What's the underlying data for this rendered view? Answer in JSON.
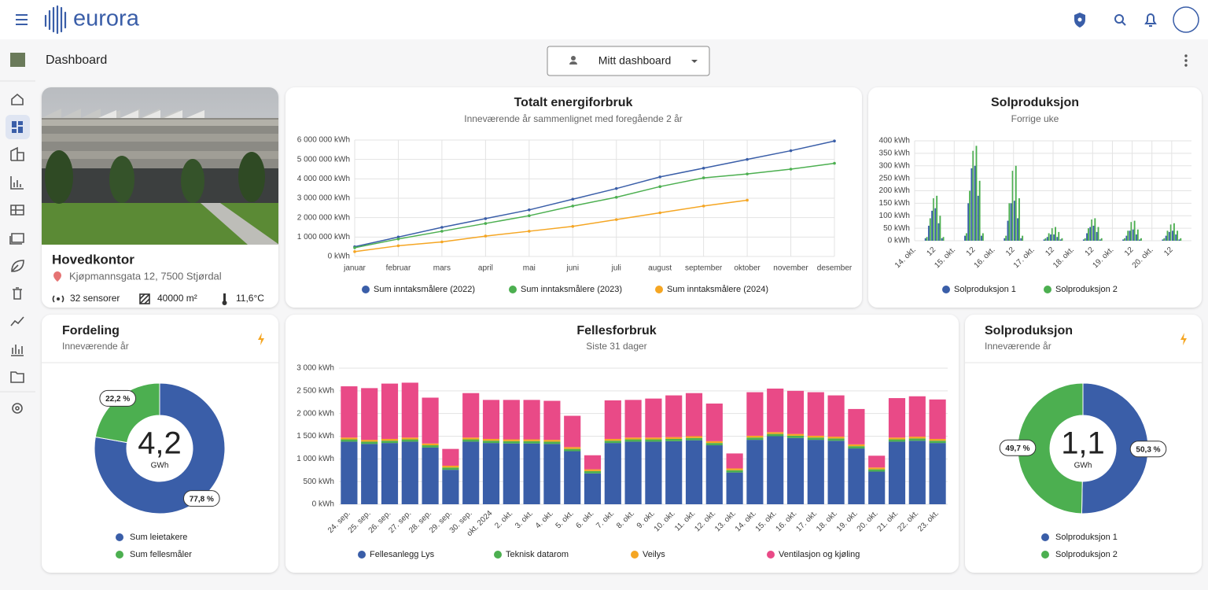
{
  "header": {
    "logo": "eurora"
  },
  "page": {
    "title": "Dashboard",
    "dashboard_select": "Mitt dashboard"
  },
  "building": {
    "name": "Hovedkontor",
    "address": "Kjøpmannsgata 12, 7500 Stjørdal",
    "sensors": "32 sensorer",
    "area": "40000 m²",
    "temperature": "11,6°C"
  },
  "chart_data": [
    {
      "type": "line",
      "title": "Totalt energiforbruk",
      "subtitle": "Inneværende år sammenlignet med foregående 2 år",
      "categories": [
        "januar",
        "februar",
        "mars",
        "april",
        "mai",
        "juni",
        "juli",
        "august",
        "september",
        "oktober",
        "november",
        "desember"
      ],
      "series": [
        {
          "name": "Sum inntaksmålere (2022)",
          "color": "#3a5ea8",
          "values": [
            500000,
            1000000,
            1500000,
            1950000,
            2400000,
            2950000,
            3500000,
            4100000,
            4550000,
            5000000,
            5450000,
            5950000
          ]
        },
        {
          "name": "Sum inntaksmålere (2023)",
          "color": "#4caf50",
          "values": [
            450000,
            900000,
            1300000,
            1700000,
            2100000,
            2600000,
            3050000,
            3600000,
            4050000,
            4250000,
            4500000,
            4800000
          ]
        },
        {
          "name": "Sum inntaksmålere (2024)",
          "color": "#f5a623",
          "values": [
            250000,
            550000,
            750000,
            1050000,
            1300000,
            1550000,
            1900000,
            2250000,
            2600000,
            2900000,
            null,
            null
          ]
        }
      ],
      "ylim": [
        0,
        6000000
      ],
      "yticks": [
        {
          "value": 0,
          "label": "0 kWh"
        },
        {
          "value": 1000000,
          "label": "1 000 000 kWh"
        },
        {
          "value": 2000000,
          "label": "2 000 000 kWh"
        },
        {
          "value": 3000000,
          "label": "3 000 000 kWh"
        },
        {
          "value": 4000000,
          "label": "4 000 000 kWh"
        },
        {
          "value": 5000000,
          "label": "5 000 000 kWh"
        },
        {
          "value": 6000000,
          "label": "6 000 000 kWh"
        }
      ],
      "grid": true
    },
    {
      "type": "bar",
      "title": "Solproduksjon",
      "subtitle": "Forrige uke",
      "categories": [
        "14. okt.",
        null,
        null,
        null,
        null,
        null,
        "12",
        null,
        null,
        null,
        null,
        null,
        "15. okt.",
        null,
        null,
        null,
        null,
        null,
        "12",
        null,
        null,
        null,
        null,
        null,
        "16. okt.",
        null,
        null,
        null,
        null,
        null,
        "12",
        null,
        null,
        null,
        null,
        null,
        "17. okt.",
        null,
        null,
        null,
        null,
        null,
        "12",
        null,
        null,
        null,
        null,
        null,
        "18. okt.",
        null,
        null,
        null,
        null,
        null,
        "12",
        null,
        null,
        null,
        null,
        null,
        "19. okt.",
        null,
        null,
        null,
        null,
        null,
        "12",
        null,
        null,
        null,
        null,
        null,
        "20. okt.",
        null,
        null,
        null,
        null,
        null,
        "12",
        null,
        null,
        null,
        null,
        null
      ],
      "series": [
        {
          "name": "Solproduksjon 1",
          "color": "#3a5ea8",
          "values": [
            0,
            0,
            0,
            10,
            60,
            120,
            130,
            70,
            10,
            0,
            0,
            0,
            0,
            0,
            0,
            20,
            150,
            290,
            300,
            180,
            20,
            0,
            0,
            0,
            0,
            0,
            0,
            10,
            80,
            150,
            160,
            90,
            10,
            0,
            0,
            0,
            0,
            0,
            0,
            5,
            15,
            25,
            25,
            15,
            5,
            0,
            0,
            0,
            0,
            0,
            0,
            5,
            30,
            55,
            60,
            35,
            5,
            0,
            0,
            0,
            0,
            0,
            0,
            5,
            20,
            40,
            45,
            25,
            5,
            0,
            0,
            0,
            0,
            0,
            0,
            5,
            20,
            35,
            40,
            25,
            5,
            0,
            0,
            0
          ]
        },
        {
          "name": "Solproduksjon 2",
          "color": "#4caf50",
          "values": [
            0,
            0,
            0,
            15,
            90,
            170,
            180,
            100,
            15,
            0,
            0,
            0,
            0,
            0,
            0,
            30,
            200,
            360,
            380,
            240,
            30,
            0,
            0,
            0,
            0,
            0,
            0,
            20,
            150,
            280,
            300,
            170,
            20,
            0,
            0,
            0,
            0,
            0,
            0,
            10,
            30,
            50,
            55,
            35,
            10,
            0,
            0,
            0,
            0,
            0,
            0,
            10,
            50,
            85,
            90,
            55,
            10,
            0,
            0,
            0,
            0,
            0,
            0,
            10,
            40,
            75,
            80,
            45,
            10,
            0,
            0,
            0,
            0,
            0,
            0,
            10,
            40,
            65,
            70,
            40,
            10,
            0,
            0,
            0
          ]
        }
      ],
      "ylim": [
        0,
        400
      ],
      "yticks": [
        {
          "value": 0,
          "label": "0 kWh"
        },
        {
          "value": 50,
          "label": "50 kWh"
        },
        {
          "value": 100,
          "label": "100 kWh"
        },
        {
          "value": 150,
          "label": "150 kWh"
        },
        {
          "value": 200,
          "label": "200 kWh"
        },
        {
          "value": 250,
          "label": "250 kWh"
        },
        {
          "value": 300,
          "label": "300 kWh"
        },
        {
          "value": 350,
          "label": "350 kWh"
        },
        {
          "value": 400,
          "label": "400 kWh"
        }
      ],
      "grid": true
    },
    {
      "type": "bar",
      "stacked": true,
      "title": "Fellesforbruk",
      "subtitle": "Siste 31 dager",
      "categories": [
        "24. sep.",
        "25. sep.",
        "26. sep.",
        "27. sep.",
        "28. sep.",
        "29. sep.",
        "30. sep.",
        "okt. 2024",
        "2. okt.",
        "3. okt.",
        "4. okt.",
        "5. okt.",
        "6. okt.",
        "7. okt.",
        "8. okt.",
        "9. okt.",
        "10. okt.",
        "11. okt.",
        "12. okt.",
        "13. okt.",
        "14. okt.",
        "15. okt.",
        "16. okt.",
        "17. okt.",
        "18. okt.",
        "19. okt.",
        "20. okt.",
        "21. okt.",
        "22. okt.",
        "23. okt."
      ],
      "series": [
        {
          "name": "Fellesanlegg Lys",
          "color": "#3a5ea8",
          "values": [
            1380,
            1330,
            1350,
            1380,
            1250,
            760,
            1380,
            1350,
            1340,
            1340,
            1330,
            1170,
            680,
            1350,
            1380,
            1380,
            1390,
            1410,
            1300,
            700,
            1420,
            1500,
            1460,
            1420,
            1400,
            1230,
            720,
            1380,
            1400,
            1350
          ]
        },
        {
          "name": "Teknisk datarom",
          "color": "#4caf50",
          "values": [
            50,
            50,
            50,
            50,
            50,
            50,
            50,
            50,
            50,
            50,
            50,
            50,
            50,
            50,
            50,
            50,
            50,
            50,
            50,
            50,
            50,
            50,
            50,
            50,
            50,
            50,
            50,
            50,
            50,
            50
          ]
        },
        {
          "name": "Veilys",
          "color": "#f5a623",
          "values": [
            40,
            40,
            40,
            40,
            40,
            40,
            40,
            40,
            40,
            40,
            40,
            40,
            40,
            40,
            40,
            40,
            40,
            40,
            40,
            40,
            40,
            40,
            40,
            40,
            40,
            40,
            40,
            40,
            40,
            40
          ]
        },
        {
          "name": "Ventilasjon og kjøling",
          "color": "#e94a87",
          "values": [
            1130,
            1140,
            1220,
            1210,
            1010,
            370,
            980,
            860,
            870,
            870,
            860,
            690,
            310,
            850,
            830,
            860,
            920,
            950,
            830,
            330,
            960,
            960,
            950,
            960,
            910,
            780,
            260,
            870,
            890,
            870
          ]
        }
      ],
      "ylim": [
        0,
        3000
      ],
      "yticks": [
        {
          "value": 0,
          "label": "0 kWh"
        },
        {
          "value": 500,
          "label": "500 kWh"
        },
        {
          "value": 1000,
          "label": "1 000 kWh"
        },
        {
          "value": 1500,
          "label": "1 500 kWh"
        },
        {
          "value": 2000,
          "label": "2 000 kWh"
        },
        {
          "value": 2500,
          "label": "2 500 kWh"
        },
        {
          "value": 3000,
          "label": "3 000 kWh"
        }
      ],
      "grid": true
    },
    {
      "type": "pie",
      "donut": true,
      "title": "Fordeling",
      "subtitle": "Inneværende år",
      "categories": [
        "Sum leietakere",
        "Sum fellesmåler"
      ],
      "values": [
        77.8,
        22.2
      ],
      "value_labels": [
        "77,8 %",
        "22,2 %"
      ],
      "colors": [
        "#3a5ea8",
        "#4caf50"
      ],
      "center_label": "4,2",
      "center_unit": "GWh"
    },
    {
      "type": "pie",
      "donut": true,
      "title": "Solproduksjon",
      "subtitle": "Inneværende år",
      "categories": [
        "Solproduksjon 1",
        "Solproduksjon 2"
      ],
      "values": [
        50.3,
        49.7
      ],
      "value_labels": [
        "50,3 %",
        "49,7 %"
      ],
      "colors": [
        "#3a5ea8",
        "#4caf50"
      ],
      "center_label": "1,1",
      "center_unit": "GWh"
    }
  ]
}
